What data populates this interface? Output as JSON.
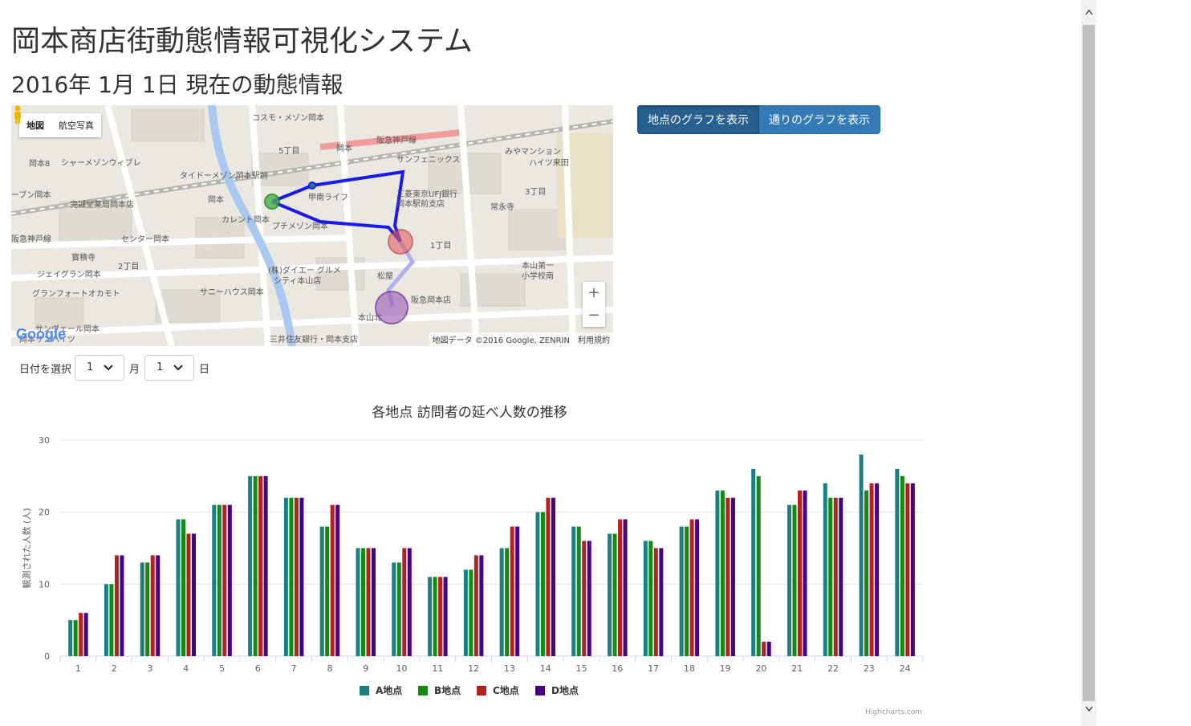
{
  "page": {
    "title": "岡本商店街動態情報可視化システム",
    "subtitle": "2016年 1月 1日 現在の動態情報"
  },
  "map": {
    "type_controls": [
      "地図",
      "航空写真"
    ],
    "zoom_in": "+",
    "zoom_out": "−",
    "attribution": "地図データ ©2016 Google, ZENRIN　利用規約",
    "google_logo": "Google",
    "labels": [
      {
        "text": "阪急神戸線"
      },
      {
        "text": "岡本"
      },
      {
        "text": "サンフェニックス"
      },
      {
        "text": "三菱東京UFJ銀行"
      },
      {
        "text": "岡本駅前支店"
      },
      {
        "text": "コスモ・メゾン岡本"
      },
      {
        "text": "5丁目"
      },
      {
        "text": "みやマンション"
      },
      {
        "text": "ハイツ来田"
      },
      {
        "text": "常永寺"
      },
      {
        "text": "3丁目"
      },
      {
        "text": "岡本8"
      },
      {
        "text": "シャーメゾンウィブレ"
      },
      {
        "text": "タイドーメゾン岡本駅前"
      },
      {
        "text": "甲南ライフ"
      },
      {
        "text": "岡本"
      },
      {
        "text": "カレント岡本"
      },
      {
        "text": "プチメゾン岡本"
      },
      {
        "text": "完誠堂薬局岡本店"
      },
      {
        "text": "センター岡本"
      },
      {
        "text": "寶積寺"
      },
      {
        "text": "2丁目"
      },
      {
        "text": "1丁目"
      },
      {
        "text": "ジェイグラン岡本"
      },
      {
        "text": "グランフォートオカモト"
      },
      {
        "text": "(株)ダイエー グルメ"
      },
      {
        "text": "シティ本山店"
      },
      {
        "text": "サニーハウス岡本"
      },
      {
        "text": "松屋"
      },
      {
        "text": "阪急岡本店"
      },
      {
        "text": "本山第一"
      },
      {
        "text": "小学校南"
      },
      {
        "text": "本山北"
      },
      {
        "text": "三井住友銀行・岡本支店"
      },
      {
        "text": "阪急神戸線"
      },
      {
        "text": "ーブン岡本"
      },
      {
        "text": "サンヴェール岡本"
      },
      {
        "text": "岡本サンハイツ"
      }
    ]
  },
  "buttons": {
    "spot_graph": "地点のグラフを表示",
    "street_graph": "通りのグラフを表示"
  },
  "date_selector": {
    "label": "日付を選択",
    "month_value": "1",
    "month_unit": "月",
    "day_value": "1",
    "day_unit": "日",
    "chevron": "❯"
  },
  "scrollbar": {
    "up": "▲",
    "down": "▼"
  },
  "chart_data": {
    "type": "bar",
    "title": "各地点 訪問者の延べ人数の推移",
    "xlabel": "",
    "ylabel": "観測された人数 (人)",
    "ylim": [
      0,
      30
    ],
    "yticks": [
      0,
      10,
      20,
      30
    ],
    "categories": [
      "1",
      "2",
      "3",
      "4",
      "5",
      "6",
      "7",
      "8",
      "9",
      "10",
      "11",
      "12",
      "13",
      "14",
      "15",
      "16",
      "17",
      "18",
      "19",
      "20",
      "21",
      "22",
      "23",
      "24"
    ],
    "series": [
      {
        "name": "A地点",
        "color": "#1a8080",
        "values": [
          5,
          10,
          13,
          19,
          21,
          25,
          22,
          18,
          15,
          13,
          11,
          12,
          15,
          20,
          18,
          17,
          16,
          18,
          23,
          26,
          21,
          24,
          28,
          26
        ]
      },
      {
        "name": "B地点",
        "color": "#138a13",
        "values": [
          5,
          10,
          13,
          19,
          21,
          25,
          22,
          18,
          15,
          13,
          11,
          12,
          15,
          20,
          18,
          17,
          16,
          18,
          23,
          25,
          21,
          22,
          23,
          25
        ]
      },
      {
        "name": "C地点",
        "color": "#b22222",
        "values": [
          6,
          14,
          14,
          17,
          21,
          25,
          22,
          21,
          15,
          15,
          11,
          14,
          18,
          22,
          16,
          19,
          15,
          19,
          22,
          2,
          23,
          22,
          24,
          24
        ]
      },
      {
        "name": "D地点",
        "color": "#4b0082",
        "values": [
          6,
          14,
          14,
          17,
          21,
          25,
          22,
          21,
          15,
          15,
          11,
          14,
          18,
          22,
          16,
          19,
          15,
          19,
          22,
          2,
          23,
          22,
          24,
          24
        ]
      }
    ],
    "grid": true,
    "legend_position": "bottom",
    "credit": "Highcharts.com"
  }
}
